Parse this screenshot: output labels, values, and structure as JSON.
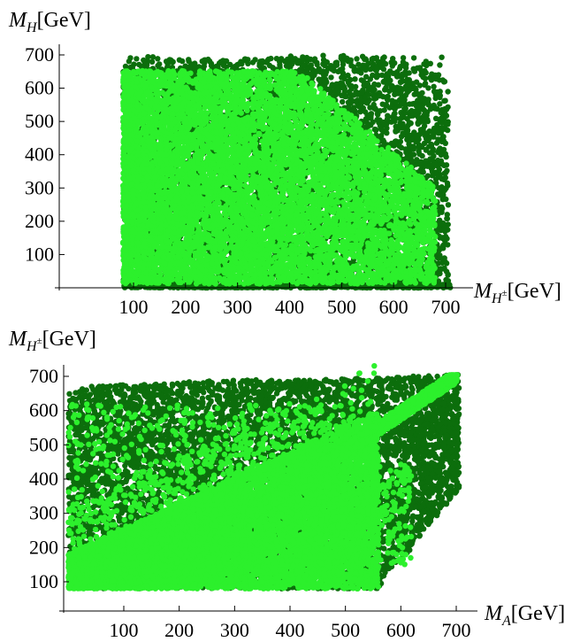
{
  "chart_data": [
    {
      "type": "scatter",
      "title": "",
      "xlabel": {
        "main": "M",
        "sub": "H",
        "sup": "±",
        "unit": "[GeV]"
      },
      "ylabel": {
        "main": "M",
        "sub": "H",
        "unit": "[GeV]"
      },
      "xlim": [
        0,
        720
      ],
      "ylim": [
        0,
        710
      ],
      "x_ticks": [
        "100",
        "200",
        "300",
        "400",
        "500",
        "600",
        "700"
      ],
      "y_ticks": [
        "100",
        "200",
        "300",
        "400",
        "500",
        "600",
        "700"
      ],
      "grid": false,
      "colors": {
        "dark": "#0c6e0c",
        "light": "#2cf02c"
      },
      "series": [
        {
          "values_description_free": true,
          "region": {
            "x": [
              80,
              705
            ],
            "y": [
              0,
              700
            ]
          },
          "color": "dark"
        },
        {
          "region": {
            "x": [
              80,
              690
            ],
            "y": [
              0,
              700
            ]
          },
          "color": "light"
        }
      ]
    },
    {
      "type": "scatter",
      "title": "",
      "xlabel": {
        "main": "M",
        "sub": "A",
        "unit": "[GeV]"
      },
      "ylabel": {
        "main": "M",
        "sub": "H",
        "sup": "±",
        "unit": "[GeV]"
      },
      "xlim": [
        0,
        720
      ],
      "ylim": [
        50,
        720
      ],
      "x_ticks": [
        "100",
        "200",
        "300",
        "400",
        "500",
        "600",
        "700"
      ],
      "y_ticks": [
        "100",
        "200",
        "300",
        "400",
        "500",
        "600",
        "700"
      ],
      "grid": false,
      "colors": {
        "dark": "#0c6e0c",
        "light": "#2cf02c"
      },
      "series": [
        {
          "region": {
            "x": [
              0,
              705
            ],
            "y": [
              80,
              705
            ]
          },
          "color": "dark"
        },
        {
          "region": {
            "x": [
              0,
              705
            ],
            "y": [
              80,
              705
            ]
          },
          "color": "light"
        }
      ]
    }
  ]
}
